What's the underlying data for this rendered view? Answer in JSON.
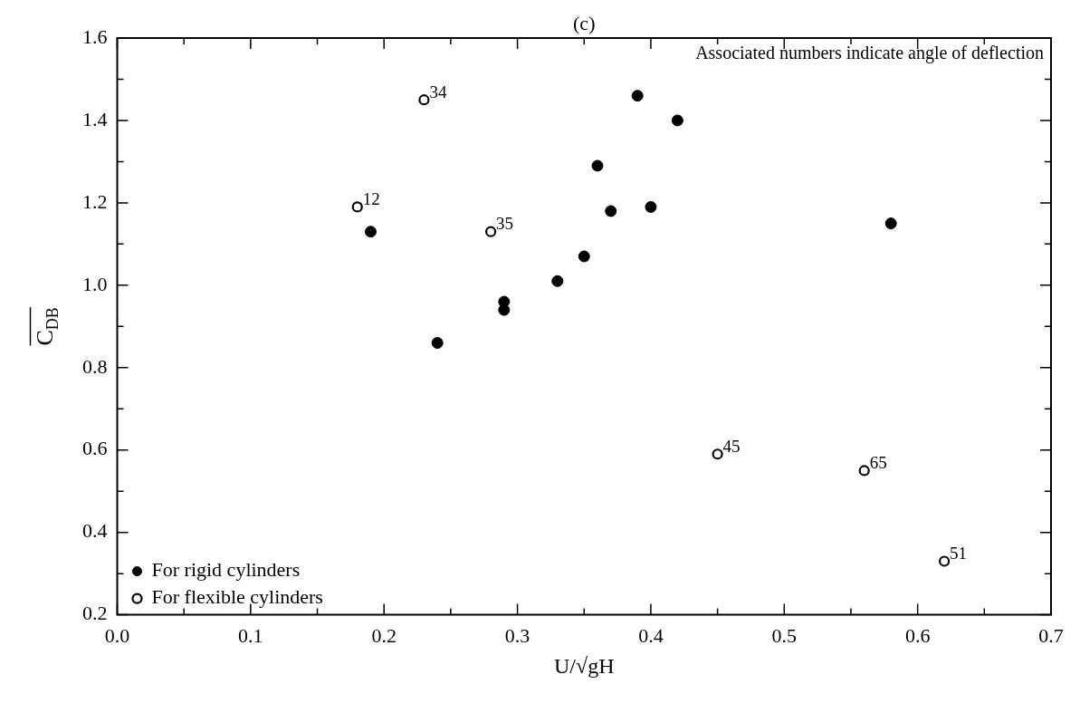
{
  "chart_data": {
    "type": "scatter",
    "title": "(c)",
    "xlabel": "U/√gH",
    "ylabel": "C$_{DB}$",
    "xlim": [
      0,
      0.7
    ],
    "ylim": [
      0.2,
      1.6
    ],
    "xticks": [
      {
        "value": 0,
        "label": "0.0"
      },
      {
        "value": 0.05,
        "label": null
      },
      0.1,
      {
        "value": 0.15,
        "label": null
      },
      0.2,
      {
        "value": 0.25,
        "label": null
      },
      0.3,
      {
        "value": 0.35,
        "label": null
      },
      0.4,
      {
        "value": 0.45,
        "label": null
      },
      0.5,
      {
        "value": 0.55,
        "label": null
      },
      0.6,
      {
        "value": 0.65,
        "label": null
      },
      0.7
    ],
    "yticks": [
      0.2,
      {
        "value": 0.3,
        "label": null
      },
      0.4,
      {
        "value": 0.5,
        "label": null
      },
      0.6,
      {
        "value": 0.7,
        "label": null
      },
      0.8,
      {
        "value": 0.9,
        "label": null
      },
      {
        "value": 1,
        "label": "1.0"
      },
      {
        "value": 1.1,
        "label": null
      },
      1.2,
      {
        "value": 1.3,
        "label": null
      },
      1.4,
      {
        "value": 1.5,
        "label": null
      },
      1.6
    ],
    "grid": false,
    "legend": "bottom left",
    "marker": "circle",
    "series": [
      {
        "name": "For rigid cylinders",
        "color": "#000000",
        "x": [
          0.19,
          0.24,
          0.29,
          0.29,
          0.33,
          0.35,
          0.36,
          0.37,
          0.39,
          0.4,
          0.42,
          0.58
        ],
        "values": [
          1.13,
          0.86,
          0.96,
          0.94,
          1.01,
          1.07,
          1.29,
          1.18,
          1.46,
          1.19,
          1.4,
          1.15
        ]
      },
      {
        "name": "For flexible cylinders",
        "color": "#000000",
        "x": [
          0.18,
          0.23,
          0.28,
          0.45,
          0.56,
          0.62
        ],
        "values": [
          1.19,
          1.45,
          1.13,
          0.59,
          0.55,
          0.33
        ]
      }
    ],
    "annotations": [
      "Associated numbers indicate angle of deflection",
      {
        "text": "12",
        "x": 0.18,
        "y": 1.19
      },
      {
        "text": "34",
        "x": 0.23,
        "y": 1.45
      },
      {
        "text": "35",
        "x": 0.28,
        "y": 1.13
      },
      {
        "text": "45",
        "x": 0.45,
        "y": 0.59
      },
      {
        "text": "65",
        "x": 0.56,
        "y": 0.55
      },
      {
        "text": "51",
        "x": 0.62,
        "y": 0.33
      }
    ]
  }
}
